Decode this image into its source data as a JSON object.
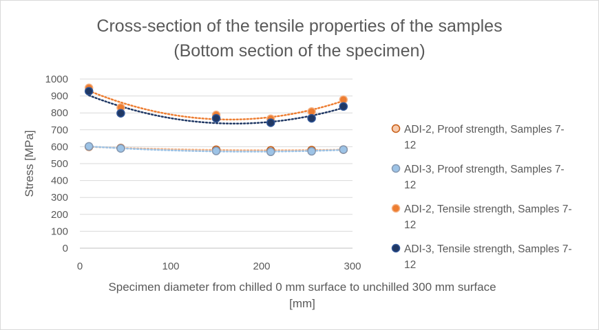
{
  "chart_data": {
    "type": "scatter",
    "title": "Cross-section of the tensile properties of the samples",
    "subtitle": "(Bottom section of the specimen)",
    "xlabel_line1": "Specimen diameter from chilled 0 mm surface to unchilled 300 mm surface",
    "xlabel_line2": "[mm]",
    "ylabel": "Stress [MPa]",
    "xlim": [
      0,
      300
    ],
    "ylim": [
      0,
      1000
    ],
    "x_ticks": [
      0,
      100,
      200,
      300
    ],
    "y_ticks": [
      0,
      100,
      200,
      300,
      400,
      500,
      600,
      700,
      800,
      900,
      1000
    ],
    "grid": "horizontal",
    "trendline": "polynomial, dotted",
    "legend_position": "right",
    "series": [
      {
        "name_line1": "ADI-2, Proof strength, Samples 7-",
        "name_line2": "12",
        "marker_fill": "#f8cbad",
        "marker_stroke": "#c55a11",
        "trend_color": "#f4b183",
        "x": [
          10,
          45,
          150,
          210,
          255,
          290
        ],
        "y": [
          600,
          592,
          582,
          578,
          580,
          583
        ]
      },
      {
        "name_line1": "ADI-3, Proof strength, Samples 7-",
        "name_line2": "12",
        "marker_fill": "#9dc3e6",
        "marker_stroke": "#8497b0",
        "trend_color": "#9dc3e6",
        "x": [
          10,
          45,
          150,
          210,
          255,
          290
        ],
        "y": [
          602,
          590,
          575,
          570,
          573,
          583
        ]
      },
      {
        "name_line1": "ADI-2, Tensile strength, Samples 7-",
        "name_line2": "12",
        "marker_fill": "#ed7d31",
        "marker_stroke": "#f4b183",
        "trend_color": "#ed7d31",
        "x": [
          10,
          45,
          150,
          210,
          255,
          290
        ],
        "y": [
          948,
          832,
          788,
          765,
          808,
          878
        ]
      },
      {
        "name_line1": "ADI-3, Tensile strength, Samples 7-",
        "name_line2": "12",
        "marker_fill": "#203864",
        "marker_stroke": "#2f5597",
        "trend_color": "#203864",
        "x": [
          10,
          45,
          150,
          210,
          255,
          290
        ],
        "y": [
          928,
          798,
          768,
          742,
          768,
          838
        ]
      }
    ]
  }
}
